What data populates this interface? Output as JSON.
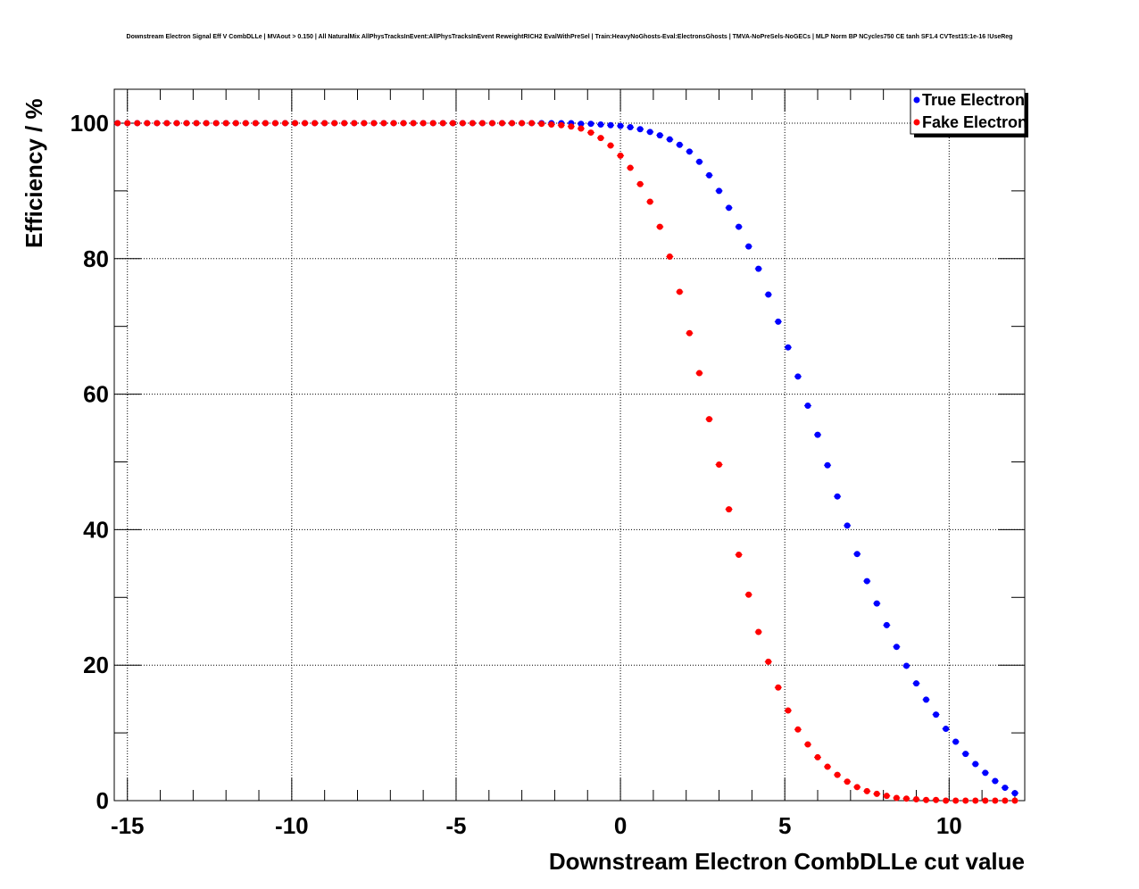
{
  "chart_data": {
    "type": "scatter",
    "title": "Downstream Electron Signal Eff V CombDLLe | MVAout > 0.150 | All NaturalMix AllPhysTracksInEvent:AllPhysTracksInEvent ReweightRICH2 EvalWithPreSel | Train:HeavyNoGhosts-Eval:ElectronsGhosts | TMVA-NoPreSels-NoGECs | MLP Norm BP NCycles750 CE tanh SF1.4 CVTest15:1e-16 !UseReg",
    "xlabel": "Downstream Electron CombDLLe cut value",
    "ylabel": "Efficiency / %",
    "xlim": [
      -15.4,
      12.3
    ],
    "ylim": [
      0,
      105
    ],
    "xticks": [
      "-15",
      "-10",
      "-5",
      "0",
      "5",
      "10"
    ],
    "yticks": [
      "0",
      "20",
      "40",
      "60",
      "80",
      "100"
    ],
    "grid": true,
    "legend_position": "top-right",
    "x": [
      -15.3,
      -15.0,
      -14.7,
      -14.4,
      -14.1,
      -13.8,
      -13.5,
      -13.2,
      -12.9,
      -12.6,
      -12.3,
      -12.0,
      -11.7,
      -11.4,
      -11.1,
      -10.8,
      -10.5,
      -10.2,
      -9.9,
      -9.6,
      -9.3,
      -9.0,
      -8.7,
      -8.4,
      -8.1,
      -7.8,
      -7.5,
      -7.2,
      -6.9,
      -6.6,
      -6.3,
      -6.0,
      -5.7,
      -5.4,
      -5.1,
      -4.8,
      -4.5,
      -4.2,
      -3.9,
      -3.6,
      -3.3,
      -3.0,
      -2.7,
      -2.4,
      -2.1,
      -1.8,
      -1.5,
      -1.2,
      -0.9,
      -0.6,
      -0.3,
      0.0,
      0.3,
      0.6,
      0.9,
      1.2,
      1.5,
      1.8,
      2.1,
      2.4,
      2.7,
      3.0,
      3.3,
      3.6,
      3.9,
      4.2,
      4.5,
      4.8,
      5.1,
      5.4,
      5.7,
      6.0,
      6.3,
      6.6,
      6.9,
      7.2,
      7.5,
      7.8,
      8.1,
      8.4,
      8.7,
      9.0,
      9.3,
      9.6,
      9.9,
      10.2,
      10.5,
      10.8,
      11.1,
      11.4,
      11.7,
      12.0
    ],
    "series": [
      {
        "name": "True Electron",
        "color": "#0000ff",
        "values": [
          100,
          100,
          100,
          100,
          100,
          100,
          100,
          100,
          100,
          100,
          100,
          100,
          100,
          100,
          100,
          100,
          100,
          100,
          100,
          100,
          100,
          100,
          100,
          100,
          100,
          100,
          100,
          100,
          100,
          100,
          100,
          100,
          100,
          100,
          100,
          100,
          100,
          100,
          100,
          100,
          100,
          100,
          100,
          100,
          100,
          100,
          100,
          99.9,
          99.9,
          99.8,
          99.7,
          99.6,
          99.4,
          99.1,
          98.7,
          98.2,
          97.6,
          96.8,
          95.8,
          94.3,
          92.3,
          90.0,
          87.5,
          84.7,
          81.8,
          78.5,
          74.7,
          70.7,
          66.9,
          62.6,
          58.3,
          54.0,
          49.5,
          44.9,
          40.6,
          36.4,
          32.4,
          29.1,
          25.9,
          22.7,
          19.9,
          17.3,
          14.9,
          12.7,
          10.6,
          8.7,
          6.9,
          5.4,
          4.1,
          2.9,
          1.9,
          1.1
        ]
      },
      {
        "name": "Fake Electron",
        "color": "#ff0000",
        "values": [
          100,
          100,
          100,
          100,
          100,
          100,
          100,
          100,
          100,
          100,
          100,
          100,
          100,
          100,
          100,
          100,
          100,
          100,
          100,
          100,
          100,
          100,
          100,
          100,
          100,
          100,
          100,
          100,
          100,
          100,
          100,
          100,
          100,
          100,
          100,
          100,
          100,
          100,
          100,
          100,
          100,
          100,
          100,
          99.9,
          99.8,
          99.7,
          99.5,
          99.2,
          98.6,
          97.8,
          96.7,
          95.2,
          93.4,
          91.0,
          88.4,
          84.7,
          80.3,
          75.1,
          69.0,
          63.1,
          56.3,
          49.6,
          43.0,
          36.3,
          30.4,
          24.9,
          20.5,
          16.7,
          13.3,
          10.5,
          8.3,
          6.4,
          5.0,
          3.8,
          2.8,
          2.0,
          1.4,
          1.0,
          0.7,
          0.4,
          0.3,
          0.2,
          0.1,
          0.1,
          0.0,
          0.0,
          0.0,
          0.0,
          0.0,
          0.0,
          0.0,
          0.0
        ]
      }
    ]
  }
}
